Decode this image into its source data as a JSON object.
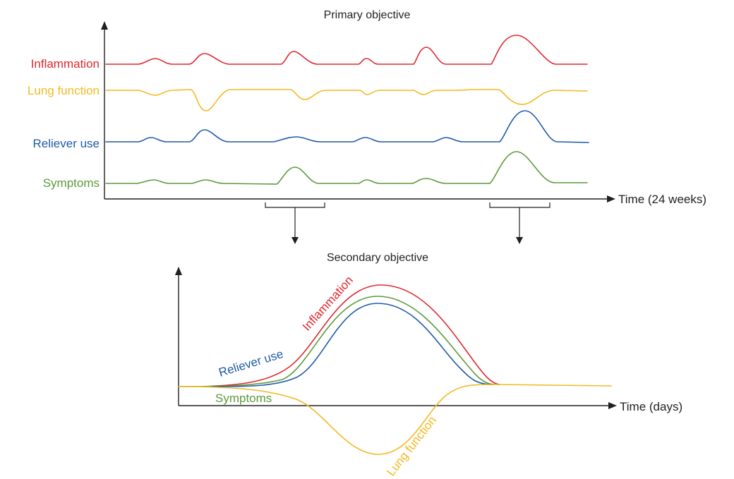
{
  "primary": {
    "title": "Primary objective",
    "x_axis_label": "Time (24 weeks)",
    "series": [
      {
        "key": "inflammation",
        "label": "Inflammation",
        "color": "#e0282e"
      },
      {
        "key": "lung",
        "label": "Lung function",
        "color": "#f4b920"
      },
      {
        "key": "reliever",
        "label": "Reliever use",
        "color": "#1f5aa8"
      },
      {
        "key": "symptoms",
        "label": "Symptoms",
        "color": "#5a9a3a"
      }
    ]
  },
  "secondary": {
    "title": "Secondary objective",
    "x_axis_label": "Time (days)",
    "series": [
      {
        "key": "inflammation",
        "label": "Inflammation",
        "color": "#e0282e"
      },
      {
        "key": "reliever",
        "label": "Reliever use",
        "color": "#1f5aa8"
      },
      {
        "key": "symptoms",
        "label": "Symptoms",
        "color": "#5a9a3a"
      },
      {
        "key": "lung",
        "label": "Lung function",
        "color": "#f4b920"
      }
    ]
  }
}
